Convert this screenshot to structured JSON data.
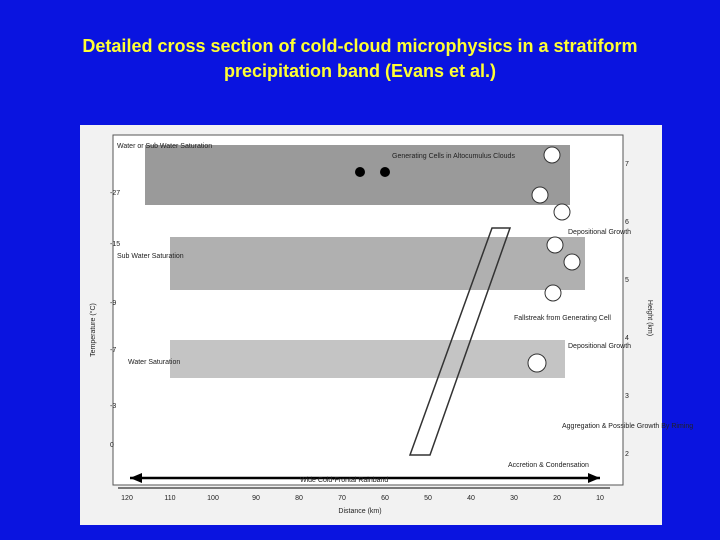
{
  "slide": {
    "title": "Detailed cross section of cold-cloud microphysics in a stratiform precipitation band (Evans et al.)",
    "figure": {
      "labels": {
        "water_or_sub": "Water or Sub Water Saturation",
        "generating_cells": "Generating Cells in Altocumulus Clouds",
        "depositional_growth_upper": "Depositional Growth",
        "sub_water": "Sub Water Saturation",
        "fallstreak": "Fallstreak from Generating Cell",
        "water_saturation": "Water Saturation",
        "depositional_growth_lower": "Depositional Growth",
        "aggregation": "Aggregation & Possible Growth By Riming",
        "accretion": "Accretion & Condensation",
        "rainband": "Wide Cold-Frontal Rainband"
      },
      "y_axis_label": "Temperature (°C)",
      "y2_axis_label": "Height (km)",
      "x_axis_label": "Distance (km)",
      "x_ticks": [
        "120",
        "110",
        "100",
        "90",
        "80",
        "70",
        "60",
        "50",
        "40",
        "30",
        "20",
        "10"
      ],
      "temperature_ticks": [
        "-27",
        "-15",
        "-9",
        "-7",
        "-3",
        "0"
      ],
      "height_ticks": [
        "7",
        "6",
        "5",
        "4",
        "3",
        "2"
      ]
    }
  }
}
